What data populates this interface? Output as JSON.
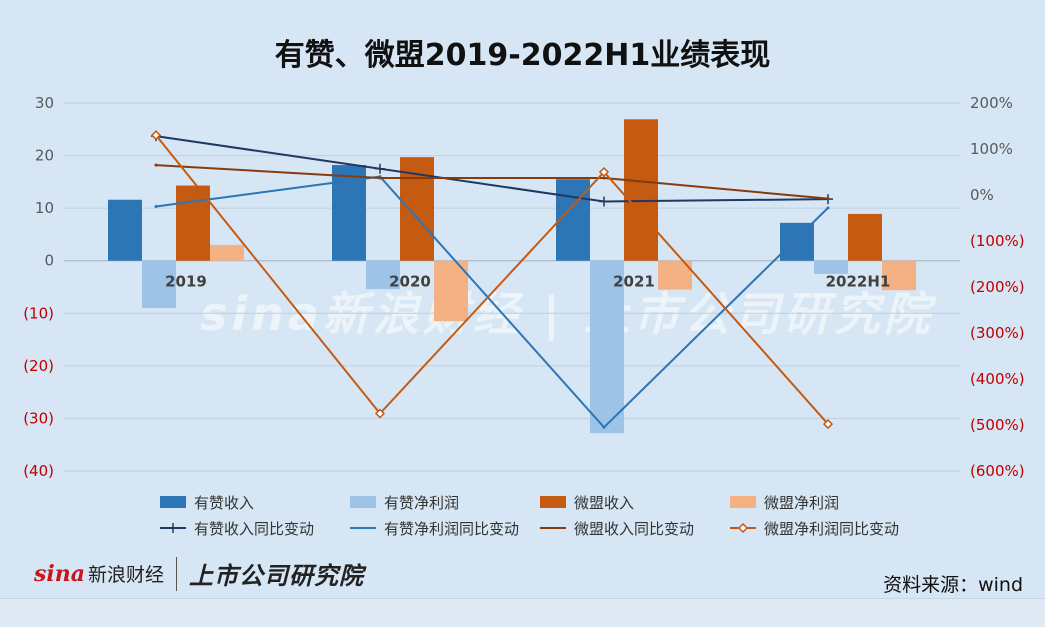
{
  "title": "有赞、微盟2019-2022H1业绩表现",
  "watermark": "sina新浪财经 | 上市公司研究院",
  "footer": {
    "logo_sina": "sina",
    "logo_cn": "新浪财经",
    "logo_research": "上市公司研究院",
    "source": "资料来源：wind"
  },
  "colors": {
    "youzan_revenue": "#2e75b6",
    "youzan_profit": "#9dc3e6",
    "weimob_revenue": "#c55a11",
    "weimob_profit": "#f4b183",
    "youzan_revenue_yoy": "#1f3864",
    "youzan_profit_yoy": "#2e75b6",
    "weimob_revenue_yoy": "#843c0c",
    "weimob_profit_yoy": "#c55a11",
    "negative_tick": "#c00000",
    "positive_tick": "#595959"
  },
  "chart_data": {
    "type": "bar",
    "categories": [
      "2019",
      "2020",
      "2021",
      "2022H1"
    ],
    "ylim": [
      -40,
      30
    ],
    "y_ticks": [
      "30",
      "20",
      "10",
      "0",
      "(10)",
      "(20)",
      "(30)",
      "(40)"
    ],
    "y2lim": [
      -600,
      200
    ],
    "y2_ticks": [
      "200%",
      "100%",
      "0%",
      "(100%)",
      "(200%)",
      "(300%)",
      "(400%)",
      "(500%)",
      "(600%)"
    ],
    "grid": true,
    "legend_position": "bottom",
    "bar_series": [
      {
        "name": "有赞收入",
        "values": [
          11.6,
          18.2,
          15.5,
          7.2
        ]
      },
      {
        "name": "有赞净利润",
        "values": [
          -9.0,
          -5.4,
          -32.8,
          -2.5
        ]
      },
      {
        "name": "微盟收入",
        "values": [
          14.3,
          19.7,
          26.9,
          8.9
        ]
      },
      {
        "name": "微盟净利润",
        "values": [
          3.0,
          -11.5,
          -5.5,
          -5.6
        ]
      }
    ],
    "line_series": [
      {
        "name": "有赞收入同比变动",
        "axis": "right",
        "values": [
          128,
          57,
          -14,
          -9
        ]
      },
      {
        "name": "有赞净利润同比变动",
        "axis": "right",
        "values": [
          -25,
          40,
          -505,
          -28
        ]
      },
      {
        "name": "微盟收入同比变动",
        "axis": "right",
        "values": [
          65,
          37,
          37,
          -8
        ]
      },
      {
        "name": "微盟净利润同比变动",
        "axis": "right",
        "values": [
          130,
          -475,
          50,
          -498
        ]
      }
    ]
  }
}
